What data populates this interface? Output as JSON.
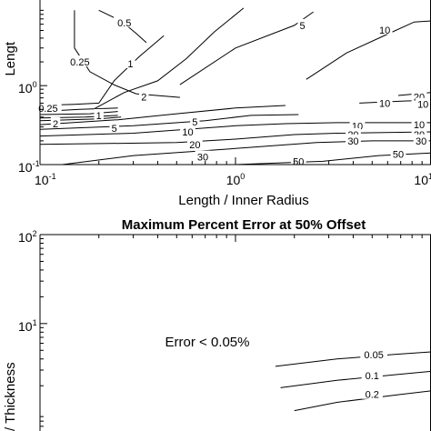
{
  "chart_data": [
    {
      "type": "contour",
      "panel": "top",
      "title": "",
      "xlabel": "Length / Inner Radius",
      "ylabel": "Lengt",
      "xscale": "log",
      "yscale": "log",
      "xticks": [
        {
          "base": "10",
          "exp": "-1"
        },
        {
          "base": "10",
          "exp": "0"
        },
        {
          "base": "10",
          "exp": "1"
        }
      ],
      "yticks": [
        {
          "base": "10",
          "exp": "-1"
        },
        {
          "base": "10",
          "exp": "0"
        }
      ],
      "contour_levels": [
        "0.25",
        "0.5",
        "1",
        "2",
        "5",
        "10",
        "20",
        "30",
        "50"
      ],
      "contour_labels": [
        {
          "text": "0.5",
          "x": 0.27,
          "y": 6.3
        },
        {
          "text": "0.25",
          "x": 0.16,
          "y": 2.0
        },
        {
          "text": "1",
          "x": 0.29,
          "y": 1.9
        },
        {
          "text": "5",
          "x": 2.2,
          "y": 5.8
        },
        {
          "text": "10",
          "x": 5.8,
          "y": 5.1
        },
        {
          "text": "2",
          "x": 0.34,
          "y": 0.72
        },
        {
          "text": "0.25",
          "x": 0.11,
          "y": 0.52
        },
        {
          "text": "1",
          "x": 0.2,
          "y": 0.42
        },
        {
          "text": "2",
          "x": 0.12,
          "y": 0.33
        },
        {
          "text": "5",
          "x": 0.24,
          "y": 0.29
        },
        {
          "text": "5",
          "x": 0.62,
          "y": 0.35
        },
        {
          "text": "10",
          "x": 0.57,
          "y": 0.26
        },
        {
          "text": "20",
          "x": 0.62,
          "y": 0.18
        },
        {
          "text": "30",
          "x": 0.68,
          "y": 0.125
        },
        {
          "text": "50",
          "x": 2.1,
          "y": 0.11
        },
        {
          "text": "50",
          "x": 6.8,
          "y": 0.135
        },
        {
          "text": "20",
          "x": 8.7,
          "y": 0.72
        },
        {
          "text": "10",
          "x": 5.8,
          "y": 0.6
        },
        {
          "text": "10",
          "x": 9.1,
          "y": 0.58
        },
        {
          "text": "10",
          "x": 4.2,
          "y": 0.31
        },
        {
          "text": "10",
          "x": 8.7,
          "y": 0.32
        },
        {
          "text": "20",
          "x": 4.0,
          "y": 0.24
        },
        {
          "text": "20",
          "x": 8.7,
          "y": 0.24
        },
        {
          "text": "30",
          "x": 4.0,
          "y": 0.2
        },
        {
          "text": "30",
          "x": 8.9,
          "y": 0.2
        }
      ],
      "contours": [
        {
          "level": "0.5",
          "points": [
            [
              0.2,
              9.0
            ],
            [
              0.26,
              6.6
            ],
            [
              0.31,
              4.6
            ],
            [
              0.35,
              3.5
            ]
          ]
        },
        {
          "level": "0.25",
          "points": [
            [
              0.15,
              9.0
            ],
            [
              0.15,
              3.0
            ],
            [
              0.18,
              1.5
            ],
            [
              0.24,
              1.02
            ],
            [
              0.31,
              0.79
            ],
            [
              0.52,
              0.71
            ]
          ]
        },
        {
          "level": "1",
          "points": [
            [
              0.43,
              4.3
            ],
            [
              0.32,
              2.3
            ],
            [
              0.24,
              1.16
            ],
            [
              0.2,
              0.6
            ],
            [
              0.15,
              0.58
            ],
            [
              0.12,
              0.57
            ],
            [
              0.1,
              0.57
            ]
          ]
        },
        {
          "level": "5",
          "points": [
            [
              0.52,
              1.03
            ],
            [
              1.0,
              3.0
            ],
            [
              2.0,
              5.8
            ],
            [
              2.5,
              8.6
            ]
          ]
        },
        {
          "level": "10",
          "points": [
            [
              2.3,
              1.2
            ],
            [
              3.7,
              2.6
            ],
            [
              6.0,
              4.5
            ],
            [
              8.2,
              6.4
            ],
            [
              10.0,
              6.6
            ]
          ]
        },
        {
          "level": "2",
          "points": [
            [
              0.19,
              0.51
            ],
            [
              0.27,
              0.82
            ],
            [
              0.4,
              1.15
            ],
            [
              0.56,
              2.2
            ],
            [
              0.78,
              4.8
            ],
            [
              1.1,
              9.6
            ]
          ]
        },
        {
          "level": "0.25",
          "points": [
            [
              0.1,
              0.47
            ],
            [
              0.16,
              0.5
            ],
            [
              0.25,
              0.52
            ]
          ]
        },
        {
          "level": "0.25",
          "points": [
            [
              0.1,
              0.43
            ],
            [
              0.18,
              0.44
            ],
            [
              0.25,
              0.47
            ]
          ]
        },
        {
          "level": "0.5",
          "points": [
            [
              0.1,
              0.39
            ],
            [
              0.17,
              0.4
            ],
            [
              0.25,
              0.42
            ]
          ]
        },
        {
          "level": "1",
          "points": [
            [
              0.1,
              0.36
            ],
            [
              0.2,
              0.38
            ],
            [
              0.26,
              0.4
            ]
          ]
        },
        {
          "level": "2",
          "points": [
            [
              0.1,
              0.32
            ],
            [
              0.25,
              0.37
            ],
            [
              0.5,
              0.44
            ],
            [
              1.0,
              0.52
            ],
            [
              1.8,
              0.56
            ]
          ]
        },
        {
          "level": "5",
          "points": [
            [
              0.1,
              0.28
            ],
            [
              0.3,
              0.31
            ],
            [
              0.7,
              0.36
            ],
            [
              1.2,
              0.42
            ],
            [
              2.1,
              0.43
            ]
          ]
        },
        {
          "level": "10",
          "points": [
            [
              0.1,
              0.23
            ],
            [
              0.3,
              0.25
            ],
            [
              1.0,
              0.31
            ],
            [
              1.8,
              0.33
            ],
            [
              3.3,
              0.34
            ],
            [
              10.0,
              0.34
            ]
          ]
        },
        {
          "level": "20",
          "points": [
            [
              0.1,
              0.18
            ],
            [
              0.5,
              0.19
            ],
            [
              1.0,
              0.21
            ],
            [
              2.0,
              0.24
            ],
            [
              3.3,
              0.25
            ],
            [
              10.0,
              0.26
            ]
          ]
        },
        {
          "level": "30",
          "points": [
            [
              0.13,
              0.1
            ],
            [
              0.3,
              0.13
            ],
            [
              1.0,
              0.16
            ],
            [
              2.6,
              0.19
            ],
            [
              5.0,
              0.2
            ],
            [
              10.0,
              0.2
            ]
          ]
        },
        {
          "level": "50",
          "points": [
            [
              1.0,
              0.1
            ],
            [
              2.8,
              0.11
            ],
            [
              5.4,
              0.13
            ],
            [
              10.0,
              0.14
            ]
          ]
        },
        {
          "level": "10",
          "points": [
            [
              4.3,
              0.6
            ],
            [
              7.5,
              0.64
            ],
            [
              10.0,
              0.65
            ]
          ]
        },
        {
          "level": "20",
          "points": [
            [
              6.8,
              0.75
            ],
            [
              9.0,
              0.8
            ],
            [
              10.0,
              0.82
            ]
          ]
        }
      ]
    },
    {
      "type": "contour",
      "panel": "bottom",
      "title": "Maximum Percent Error at 50% Offset",
      "xlabel": "",
      "ylabel": "/ Thickness",
      "xscale": "log",
      "yscale": "log",
      "yticks": [
        {
          "base": "10",
          "exp": "2"
        },
        {
          "base": "10",
          "exp": "1"
        }
      ],
      "annotations": [
        "Error < 0.05%"
      ],
      "contour_levels": [
        "0.05",
        "0.1",
        "0.2"
      ],
      "contour_labels": [
        {
          "text": "0.05",
          "x": 5.1,
          "y": 4.5
        },
        {
          "text": "0.1",
          "x": 5.0,
          "y": 2.6
        },
        {
          "text": "0.2",
          "x": 5.0,
          "y": 1.6
        }
      ],
      "contours": [
        {
          "level": "0.05",
          "points": [
            [
              1.6,
              3.3
            ],
            [
              3.3,
              4.0
            ],
            [
              6.5,
              4.5
            ],
            [
              10.0,
              4.8
            ]
          ]
        },
        {
          "level": "0.1",
          "points": [
            [
              1.7,
              1.9
            ],
            [
              3.3,
              2.3
            ],
            [
              7.0,
              2.7
            ],
            [
              10.0,
              2.9
            ]
          ]
        },
        {
          "level": "0.2",
          "points": [
            [
              2.0,
              1.05
            ],
            [
              3.3,
              1.3
            ],
            [
              7.0,
              1.6
            ],
            [
              10.0,
              1.75
            ]
          ]
        }
      ]
    }
  ]
}
